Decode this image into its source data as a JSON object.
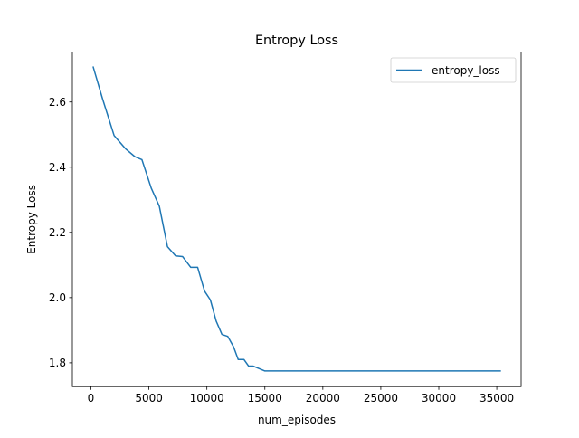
{
  "chart_data": {
    "type": "line",
    "title": "Entropy Loss",
    "xlabel": "num_episodes",
    "ylabel": "Entropy Loss",
    "xlim": [
      -1600,
      37100
    ],
    "ylim": [
      1.727,
      2.753
    ],
    "xticks": [
      0,
      5000,
      10000,
      15000,
      20000,
      25000,
      30000,
      35000
    ],
    "yticks": [
      1.8,
      2.0,
      2.2,
      2.4,
      2.6
    ],
    "ytick_labels": [
      "1.8",
      "2.0",
      "2.2",
      "2.4",
      "2.6"
    ],
    "grid": false,
    "legend": "top-right",
    "series": [
      {
        "name": "entropy_loss",
        "color": "#1f77b4",
        "x": [
          200,
          1000,
          2000,
          3000,
          3800,
          4400,
          5200,
          5900,
          6600,
          7300,
          7900,
          8600,
          9200,
          9800,
          10300,
          10800,
          11300,
          11800,
          12300,
          12700,
          13200,
          13600,
          14000,
          15000,
          20000,
          25000,
          30000,
          35300
        ],
        "y": [
          2.707,
          2.61,
          2.497,
          2.456,
          2.432,
          2.423,
          2.336,
          2.28,
          2.156,
          2.128,
          2.126,
          2.093,
          2.093,
          2.02,
          1.993,
          1.928,
          1.887,
          1.881,
          1.849,
          1.81,
          1.81,
          1.79,
          1.79,
          1.775,
          1.775,
          1.775,
          1.775,
          1.775
        ]
      }
    ]
  }
}
